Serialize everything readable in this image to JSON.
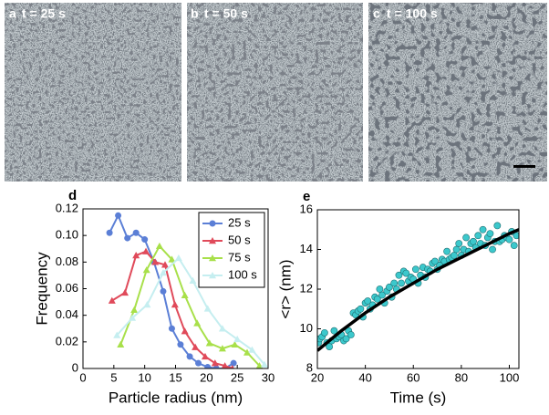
{
  "images": [
    {
      "label": "a",
      "caption": "t = 25 s"
    },
    {
      "label": "b",
      "caption": "t = 50 s"
    },
    {
      "label": "c",
      "caption": "t = 100 s"
    }
  ],
  "chart_data": [
    {
      "type": "line",
      "panel_label": "d",
      "x_label": "Particle radius (nm)",
      "y_label": "Frequency",
      "xlim": [
        0,
        30
      ],
      "xticks": [
        0,
        5,
        10,
        15,
        20,
        25,
        30
      ],
      "ylim": [
        0,
        0.12
      ],
      "yticks": [
        0,
        0.02,
        0.04,
        0.06,
        0.08,
        {
          "value": 0.1,
          "label": "0.10"
        },
        0.12
      ],
      "legend": "upper right",
      "series": [
        {
          "name": "25 s",
          "color": "#5b7fd6",
          "marker": "circle",
          "x": [
            4.3,
            5.7,
            7.2,
            8.6,
            10.0,
            11.5,
            13.0,
            14.4,
            15.8,
            17.3,
            18.7,
            20.2,
            21.6,
            23.0,
            24.4
          ],
          "values": [
            0.102,
            0.115,
            0.098,
            0.102,
            0.097,
            0.08,
            0.058,
            0.03,
            0.018,
            0.009,
            0.004,
            0.001,
            0,
            0,
            0.004
          ]
        },
        {
          "name": "50 s",
          "color": "#e04a5a",
          "marker": "triangle",
          "x": [
            4.7,
            6.8,
            8.6,
            10.2,
            11.7,
            13.3,
            14.9,
            16.5,
            18.2,
            19.8,
            21.4,
            23.0,
            24.2
          ],
          "values": [
            0.051,
            0.057,
            0.085,
            0.088,
            0.08,
            0.078,
            0.048,
            0.028,
            0.016,
            0.009,
            0.004,
            0.002,
            0
          ]
        },
        {
          "name": "75 s",
          "color": "#a8e04a",
          "marker": "triangle",
          "x": [
            6.1,
            8.3,
            10.3,
            12.4,
            14.4,
            16.5,
            18.5,
            20.5,
            22.6,
            24.6,
            26.6,
            28.6
          ],
          "values": [
            0.018,
            0.044,
            0.074,
            0.092,
            0.082,
            0.055,
            0.034,
            0.019,
            0.015,
            0.018,
            0.012,
            0.002
          ]
        },
        {
          "name": "100 s",
          "color": "#c5eef0",
          "marker": "triangle",
          "x": [
            5.5,
            8.0,
            10.4,
            13.0,
            15.5,
            17.8,
            20.2,
            22.6,
            25.0,
            27.4,
            29.4
          ],
          "values": [
            0.025,
            0.038,
            0.048,
            0.072,
            0.083,
            0.066,
            0.045,
            0.03,
            0.022,
            0.014,
            0.003
          ]
        }
      ]
    },
    {
      "type": "scatter",
      "panel_label": "e",
      "x_label": "Time (s)",
      "y_label": "<r> (nm)",
      "xlim": [
        20,
        104
      ],
      "xticks": [
        20,
        40,
        60,
        80,
        100
      ],
      "ylim": [
        8,
        16
      ],
      "yticks": [
        8,
        10,
        12,
        14,
        16
      ],
      "series": [
        {
          "type": "scatter",
          "color": "#3cc8cc",
          "x": [
            20.5,
            21,
            22,
            23,
            24,
            25,
            26,
            27,
            28,
            29,
            30,
            31,
            32,
            33,
            34,
            35,
            36,
            37,
            38,
            39,
            40,
            41,
            42,
            43,
            44,
            45,
            46,
            47,
            48,
            49,
            50,
            51,
            52,
            53,
            54,
            55,
            56,
            57,
            58,
            59,
            60,
            61,
            62,
            63,
            64,
            65,
            66,
            67,
            68,
            69,
            70,
            71,
            72,
            73,
            74,
            75,
            76,
            77,
            78,
            79,
            80,
            81,
            82,
            83,
            84,
            85,
            86,
            87,
            88,
            89,
            90,
            91,
            92,
            93,
            94,
            95,
            96,
            97,
            98,
            99,
            100,
            101,
            102,
            103
          ],
          "values": [
            9.3,
            9.5,
            9.6,
            9.8,
            9.3,
            9.1,
            9.4,
            9.9,
            9.5,
            9.6,
            9.7,
            9.4,
            9.5,
            9.9,
            9.7,
            10.8,
            10.7,
            10.9,
            11.0,
            10.6,
            11.3,
            11.4,
            11.0,
            11.2,
            11.6,
            11.5,
            12.0,
            11.7,
            11.3,
            11.9,
            12.1,
            11.6,
            12.3,
            12.0,
            12.7,
            12.3,
            12.9,
            12.8,
            12.4,
            12.6,
            12.5,
            13.0,
            12.3,
            12.7,
            13.1,
            12.6,
            13.0,
            12.9,
            13.3,
            13.4,
            13.0,
            13.2,
            13.5,
            13.4,
            13.9,
            13.5,
            13.6,
            13.7,
            14.0,
            14.3,
            13.7,
            14.0,
            14.6,
            13.9,
            14.3,
            14.4,
            14.1,
            14.7,
            14.3,
            15.0,
            14.2,
            14.6,
            14.8,
            14.0,
            14.4,
            15.2,
            14.4,
            14.5,
            14.7,
            14.6,
            14.5,
            14.9,
            14.2,
            14.7
          ]
        },
        {
          "type": "line",
          "color": "#000000",
          "x": [
            20,
            30,
            40,
            50,
            60,
            70,
            80,
            90,
            100,
            104
          ],
          "values": [
            8.9,
            9.9,
            10.8,
            11.6,
            12.3,
            13.0,
            13.6,
            14.2,
            14.8,
            15.0
          ]
        }
      ]
    }
  ]
}
